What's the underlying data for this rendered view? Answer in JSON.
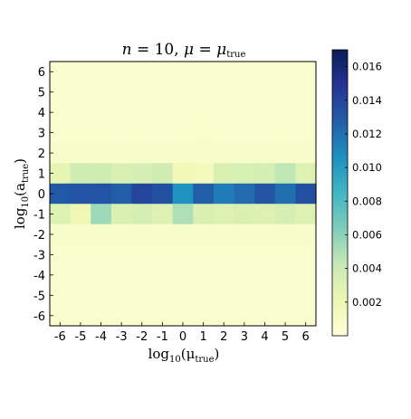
{
  "chart_data": {
    "type": "heatmap",
    "title": "n = 10,  μ = μ_true",
    "xlabel": "log10(μ_true)",
    "ylabel": "log10(a_true)",
    "x": [
      -6,
      -5,
      -4,
      -3,
      -2,
      -1,
      0,
      1,
      2,
      3,
      4,
      5,
      6
    ],
    "y": [
      -6,
      -5,
      -4,
      -3,
      -2,
      -1,
      0,
      1,
      2,
      3,
      4,
      5,
      6
    ],
    "values_top_to_bottom": [
      [
        0.0006,
        0.0006,
        0.0006,
        0.0006,
        0.0006,
        0.0006,
        0.0006,
        0.0006,
        0.0006,
        0.0006,
        0.0006,
        0.0006,
        0.0006
      ],
      [
        0.0006,
        0.0006,
        0.0006,
        0.0006,
        0.0006,
        0.0006,
        0.0006,
        0.0006,
        0.0006,
        0.0006,
        0.0006,
        0.0006,
        0.0006
      ],
      [
        0.0006,
        0.0006,
        0.0006,
        0.0006,
        0.0006,
        0.0006,
        0.0006,
        0.0006,
        0.0006,
        0.0006,
        0.0006,
        0.0006,
        0.0006
      ],
      [
        0.0006,
        0.0006,
        0.0006,
        0.0006,
        0.0006,
        0.0006,
        0.0006,
        0.0007,
        0.0006,
        0.0006,
        0.0006,
        0.0006,
        0.0006
      ],
      [
        0.0008,
        0.0009,
        0.0009,
        0.0008,
        0.0009,
        0.0008,
        0.0008,
        0.0009,
        0.0008,
        0.0008,
        0.0008,
        0.0009,
        0.0008
      ],
      [
        0.0025,
        0.0038,
        0.0038,
        0.0033,
        0.0035,
        0.0038,
        0.0018,
        0.0015,
        0.0032,
        0.0034,
        0.0035,
        0.0045,
        0.003
      ],
      [
        0.013,
        0.0132,
        0.0133,
        0.0128,
        0.014,
        0.0135,
        0.0105,
        0.0128,
        0.0115,
        0.0122,
        0.0132,
        0.012,
        0.0135
      ],
      [
        0.003,
        0.002,
        0.0055,
        0.0032,
        0.0035,
        0.003,
        0.005,
        0.0032,
        0.003,
        0.0032,
        0.003,
        0.0035,
        0.003
      ],
      [
        0.0009,
        0.0008,
        0.0009,
        0.0008,
        0.0009,
        0.0008,
        0.0008,
        0.0008,
        0.0009,
        0.0008,
        0.0009,
        0.0008,
        0.0008
      ],
      [
        0.0006,
        0.0006,
        0.0006,
        0.0006,
        0.0006,
        0.0006,
        0.0006,
        0.0006,
        0.0006,
        0.0006,
        0.0006,
        0.0006,
        0.0006
      ],
      [
        0.0006,
        0.0006,
        0.0006,
        0.0006,
        0.0006,
        0.0006,
        0.0006,
        0.0006,
        0.0006,
        0.0006,
        0.0006,
        0.0006,
        0.0006
      ],
      [
        0.0006,
        0.0006,
        0.0006,
        0.0006,
        0.0006,
        0.0006,
        0.0006,
        0.0006,
        0.0006,
        0.0006,
        0.0006,
        0.0006,
        0.0006
      ],
      [
        0.0006,
        0.0006,
        0.0006,
        0.0006,
        0.0006,
        0.0006,
        0.0006,
        0.0006,
        0.0006,
        0.0006,
        0.0006,
        0.0006,
        0.0006
      ]
    ],
    "colorbar": {
      "range": [
        0.0,
        0.017
      ],
      "ticks": [
        0.002,
        0.004,
        0.006,
        0.008,
        0.01,
        0.012,
        0.014,
        0.016
      ],
      "tick_labels": [
        "0.002",
        "0.004",
        "0.006",
        "0.008",
        "0.010",
        "0.012",
        "0.014",
        "0.016"
      ],
      "colormap": "YlGnBu",
      "stops": [
        "#ffffd9",
        "#edf8b1",
        "#c7e9b4",
        "#7fcdbb",
        "#41b6c4",
        "#1d91c0",
        "#225ea8",
        "#253494",
        "#081d58"
      ]
    },
    "x_tick_labels": [
      "-6",
      "-5",
      "-4",
      "-3",
      "-2",
      "-1",
      "0",
      "1",
      "2",
      "3",
      "4",
      "5",
      "6"
    ],
    "y_tick_labels": [
      "6",
      "5",
      "4",
      "3",
      "2",
      "1",
      "0",
      "-1",
      "-2",
      "-3",
      "-4",
      "-5",
      "-6"
    ]
  }
}
